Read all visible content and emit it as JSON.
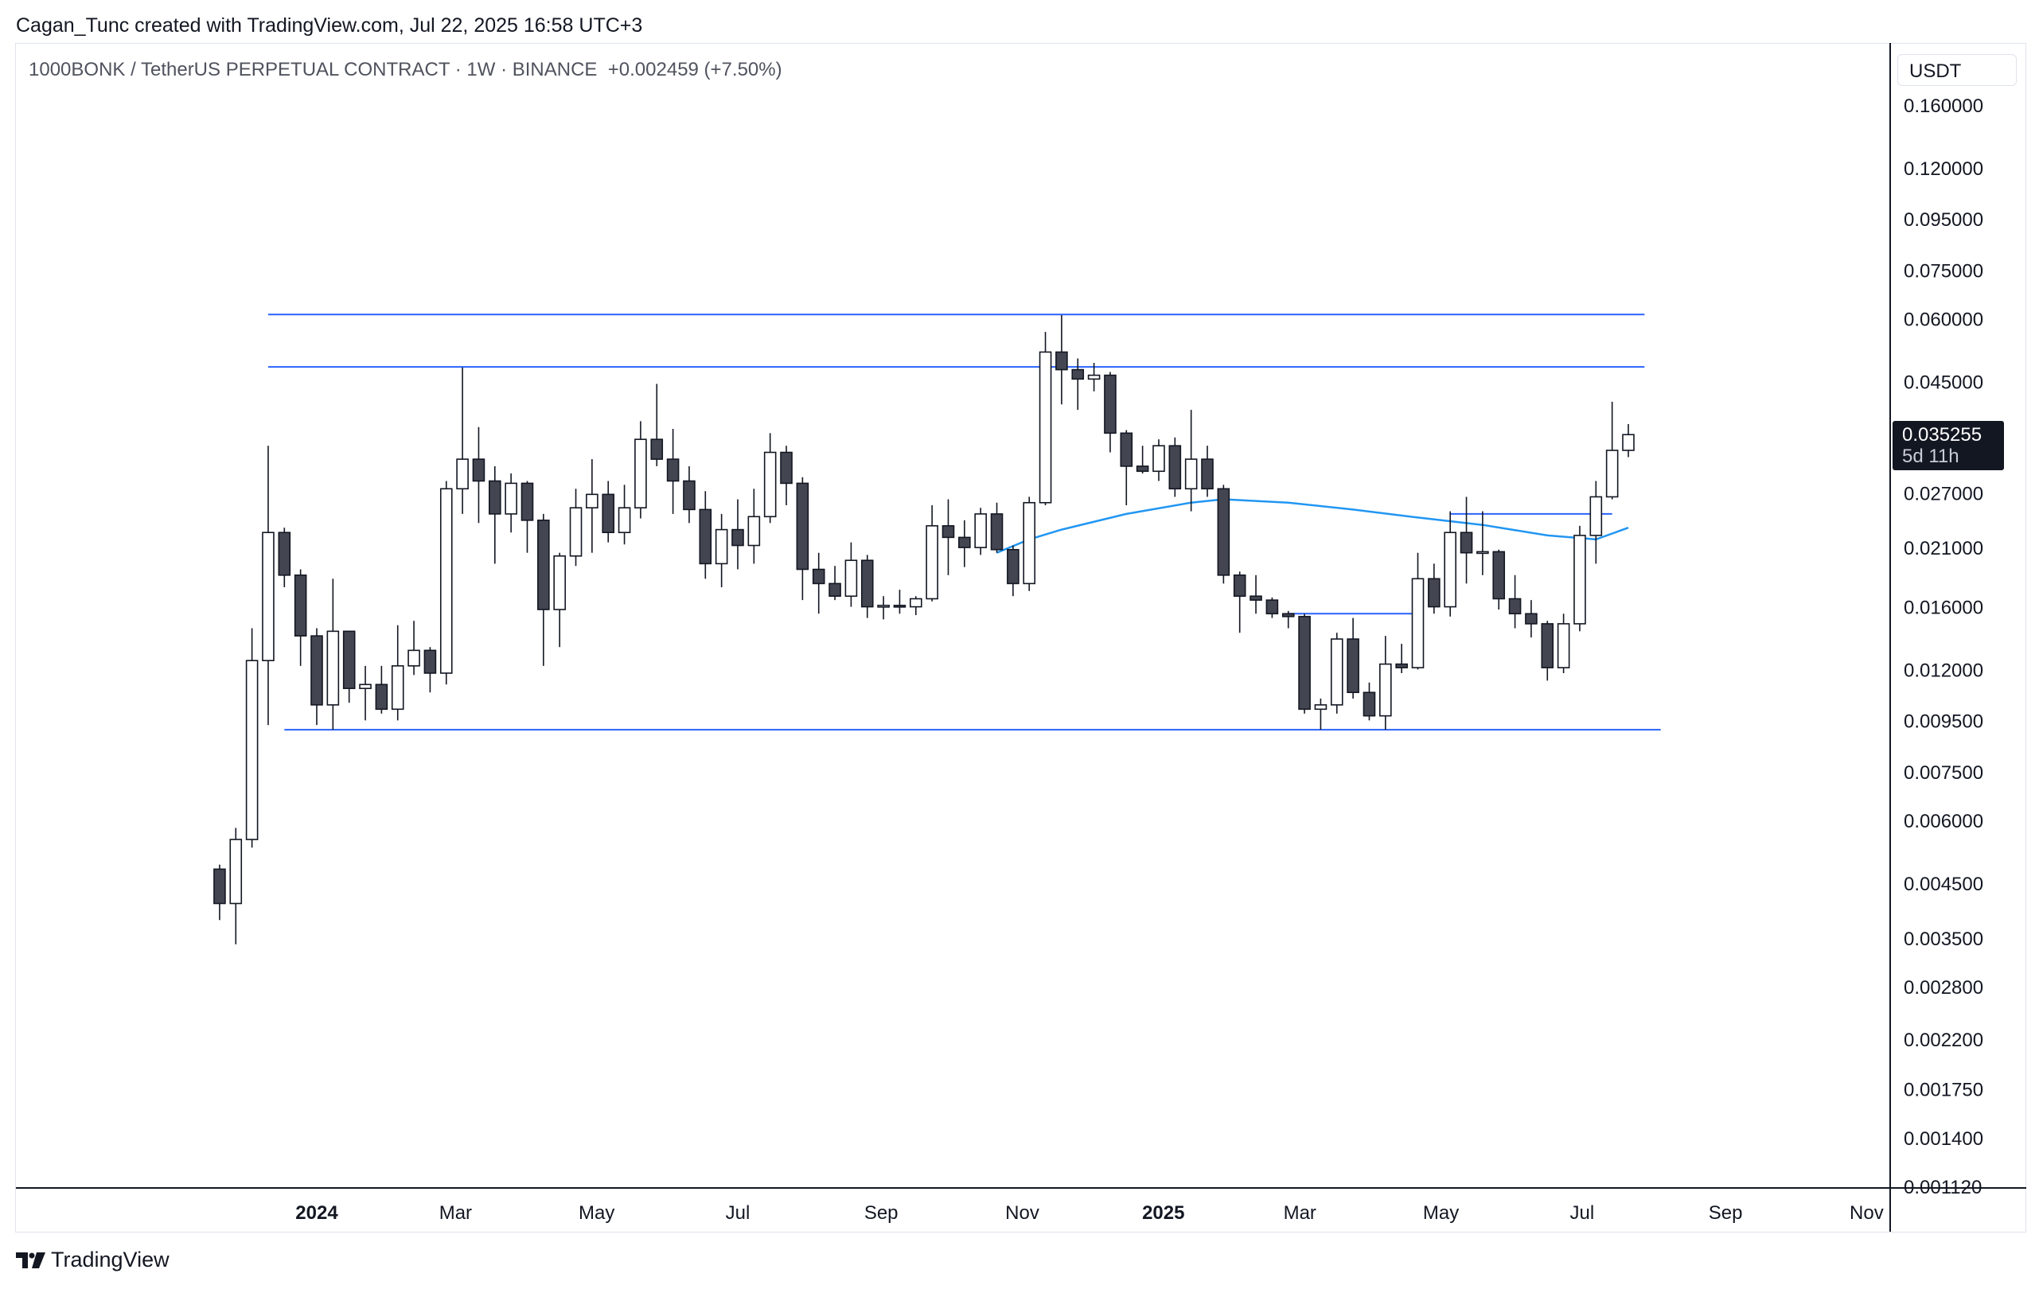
{
  "header": {
    "attribution": "Cagan_Tunc created with TradingView.com, Jul 22, 2025 16:58 UTC+3"
  },
  "legend": {
    "symbol": "1000BONK / TetherUS PERPETUAL CONTRACT · 1W · BINANCE",
    "change": "+0.002459 (+7.50%)"
  },
  "price_scale": {
    "currency": "USDT",
    "last_price": "0.035255",
    "countdown": "5d 11h"
  },
  "footer": {
    "brand": "TradingView"
  },
  "colors": {
    "bull_body": "#ffffff",
    "bear_body": "#434651",
    "candle_outline": "#131722",
    "trendline": "#2962ff",
    "moving_average": "#2196f3",
    "axis_line": "#131722"
  },
  "chart_data": {
    "type": "candlestick",
    "interval": "1W",
    "y_scale": "log",
    "y_ticks": [
      0.16,
      0.12,
      0.095,
      0.075,
      0.06,
      0.045,
      0.027,
      0.021,
      0.016,
      0.012,
      0.0095,
      0.0075,
      0.006,
      0.0045,
      0.0035,
      0.0028,
      0.0022,
      0.00175,
      0.0014,
      0.00112
    ],
    "y_tick_labels": [
      "0.160000",
      "0.120000",
      "0.095000",
      "0.075000",
      "0.060000",
      "0.045000",
      "0.027000",
      "0.021000",
      "0.016000",
      "0.012000",
      "0.009500",
      "0.007500",
      "0.006000",
      "0.004500",
      "0.003500",
      "0.002800",
      "0.002200",
      "0.001750",
      "0.001400",
      "0.001120"
    ],
    "x_ticks": [
      {
        "label": "2024",
        "date": "2024-01-01",
        "bold": true
      },
      {
        "label": "Mar",
        "date": "2024-03-01"
      },
      {
        "label": "May",
        "date": "2024-05-01"
      },
      {
        "label": "Jul",
        "date": "2024-07-01"
      },
      {
        "label": "Sep",
        "date": "2024-09-01"
      },
      {
        "label": "Nov",
        "date": "2024-11-01"
      },
      {
        "label": "2025",
        "date": "2025-01-01",
        "bold": true
      },
      {
        "label": "Mar",
        "date": "2025-03-01"
      },
      {
        "label": "May",
        "date": "2025-05-01"
      },
      {
        "label": "Jul",
        "date": "2025-07-01"
      },
      {
        "label": "Sep",
        "date": "2025-09-01"
      },
      {
        "label": "Nov",
        "date": "2025-11-01"
      }
    ],
    "candles": [
      {
        "date": "2023-11-20",
        "o": 0.0048,
        "h": 0.0049,
        "l": 0.0038,
        "c": 0.0041
      },
      {
        "date": "2023-11-27",
        "o": 0.0041,
        "h": 0.0058,
        "l": 0.0034,
        "c": 0.0055
      },
      {
        "date": "2023-12-04",
        "o": 0.0055,
        "h": 0.0145,
        "l": 0.0053,
        "c": 0.0125
      },
      {
        "date": "2023-12-11",
        "o": 0.0125,
        "h": 0.0335,
        "l": 0.0093,
        "c": 0.0225
      },
      {
        "date": "2023-12-18",
        "o": 0.0225,
        "h": 0.023,
        "l": 0.0175,
        "c": 0.0185
      },
      {
        "date": "2023-12-25",
        "o": 0.0185,
        "h": 0.019,
        "l": 0.0122,
        "c": 0.014
      },
      {
        "date": "2024-01-01",
        "o": 0.014,
        "h": 0.0145,
        "l": 0.0093,
        "c": 0.0102
      },
      {
        "date": "2024-01-08",
        "o": 0.0102,
        "h": 0.0182,
        "l": 0.0091,
        "c": 0.0143
      },
      {
        "date": "2024-01-15",
        "o": 0.0143,
        "h": 0.0143,
        "l": 0.0103,
        "c": 0.011
      },
      {
        "date": "2024-01-22",
        "o": 0.011,
        "h": 0.0122,
        "l": 0.0095,
        "c": 0.0112
      },
      {
        "date": "2024-01-29",
        "o": 0.0112,
        "h": 0.0122,
        "l": 0.0098,
        "c": 0.01
      },
      {
        "date": "2024-02-05",
        "o": 0.01,
        "h": 0.0147,
        "l": 0.0095,
        "c": 0.0122
      },
      {
        "date": "2024-02-12",
        "o": 0.0122,
        "h": 0.015,
        "l": 0.0117,
        "c": 0.0131
      },
      {
        "date": "2024-02-19",
        "o": 0.0131,
        "h": 0.0133,
        "l": 0.0108,
        "c": 0.0118
      },
      {
        "date": "2024-02-26",
        "o": 0.0118,
        "h": 0.0285,
        "l": 0.0112,
        "c": 0.0275
      },
      {
        "date": "2024-03-04",
        "o": 0.0275,
        "h": 0.048,
        "l": 0.0245,
        "c": 0.0315
      },
      {
        "date": "2024-03-11",
        "o": 0.0315,
        "h": 0.0365,
        "l": 0.0235,
        "c": 0.0285
      },
      {
        "date": "2024-03-18",
        "o": 0.0285,
        "h": 0.0305,
        "l": 0.0195,
        "c": 0.0245
      },
      {
        "date": "2024-03-25",
        "o": 0.0245,
        "h": 0.0295,
        "l": 0.0225,
        "c": 0.0282
      },
      {
        "date": "2024-04-01",
        "o": 0.0282,
        "h": 0.0285,
        "l": 0.0205,
        "c": 0.0238
      },
      {
        "date": "2024-04-08",
        "o": 0.0238,
        "h": 0.0245,
        "l": 0.0122,
        "c": 0.0158
      },
      {
        "date": "2024-04-15",
        "o": 0.0158,
        "h": 0.0205,
        "l": 0.0133,
        "c": 0.0202
      },
      {
        "date": "2024-04-22",
        "o": 0.0202,
        "h": 0.0275,
        "l": 0.0193,
        "c": 0.0252
      },
      {
        "date": "2024-04-29",
        "o": 0.0252,
        "h": 0.0315,
        "l": 0.0205,
        "c": 0.0268
      },
      {
        "date": "2024-05-06",
        "o": 0.0268,
        "h": 0.0285,
        "l": 0.0215,
        "c": 0.0225
      },
      {
        "date": "2024-05-13",
        "o": 0.0225,
        "h": 0.028,
        "l": 0.0213,
        "c": 0.0252
      },
      {
        "date": "2024-05-20",
        "o": 0.0252,
        "h": 0.0375,
        "l": 0.024,
        "c": 0.0345
      },
      {
        "date": "2024-05-27",
        "o": 0.0345,
        "h": 0.0445,
        "l": 0.0305,
        "c": 0.0315
      },
      {
        "date": "2024-06-03",
        "o": 0.0315,
        "h": 0.0362,
        "l": 0.0245,
        "c": 0.0285
      },
      {
        "date": "2024-06-10",
        "o": 0.0285,
        "h": 0.0305,
        "l": 0.0235,
        "c": 0.025
      },
      {
        "date": "2024-06-17",
        "o": 0.025,
        "h": 0.0272,
        "l": 0.0182,
        "c": 0.0195
      },
      {
        "date": "2024-06-24",
        "o": 0.0195,
        "h": 0.0245,
        "l": 0.0175,
        "c": 0.0228
      },
      {
        "date": "2024-07-01",
        "o": 0.0228,
        "h": 0.0262,
        "l": 0.019,
        "c": 0.0212
      },
      {
        "date": "2024-07-08",
        "o": 0.0212,
        "h": 0.0275,
        "l": 0.0195,
        "c": 0.0242
      },
      {
        "date": "2024-07-15",
        "o": 0.0242,
        "h": 0.0355,
        "l": 0.0235,
        "c": 0.0325
      },
      {
        "date": "2024-07-22",
        "o": 0.0325,
        "h": 0.0335,
        "l": 0.0255,
        "c": 0.0282
      },
      {
        "date": "2024-07-29",
        "o": 0.0282,
        "h": 0.029,
        "l": 0.0165,
        "c": 0.019
      },
      {
        "date": "2024-08-05",
        "o": 0.019,
        "h": 0.0205,
        "l": 0.0155,
        "c": 0.0178
      },
      {
        "date": "2024-08-12",
        "o": 0.0178,
        "h": 0.0193,
        "l": 0.0165,
        "c": 0.0168
      },
      {
        "date": "2024-08-19",
        "o": 0.0168,
        "h": 0.0215,
        "l": 0.016,
        "c": 0.0198
      },
      {
        "date": "2024-08-26",
        "o": 0.0198,
        "h": 0.0203,
        "l": 0.0152,
        "c": 0.016
      },
      {
        "date": "2024-09-02",
        "o": 0.016,
        "h": 0.0168,
        "l": 0.0151,
        "c": 0.0161
      },
      {
        "date": "2024-09-09",
        "o": 0.0161,
        "h": 0.0173,
        "l": 0.0155,
        "c": 0.016
      },
      {
        "date": "2024-09-16",
        "o": 0.016,
        "h": 0.0168,
        "l": 0.0154,
        "c": 0.0166
      },
      {
        "date": "2024-09-23",
        "o": 0.0166,
        "h": 0.0255,
        "l": 0.0164,
        "c": 0.0232
      },
      {
        "date": "2024-09-30",
        "o": 0.0232,
        "h": 0.0262,
        "l": 0.0185,
        "c": 0.022
      },
      {
        "date": "2024-10-07",
        "o": 0.022,
        "h": 0.0238,
        "l": 0.0192,
        "c": 0.021
      },
      {
        "date": "2024-10-14",
        "o": 0.021,
        "h": 0.0252,
        "l": 0.0203,
        "c": 0.0245
      },
      {
        "date": "2024-10-21",
        "o": 0.0245,
        "h": 0.0258,
        "l": 0.0205,
        "c": 0.0208
      },
      {
        "date": "2024-10-28",
        "o": 0.0208,
        "h": 0.0212,
        "l": 0.0168,
        "c": 0.0178
      },
      {
        "date": "2024-11-04",
        "o": 0.0178,
        "h": 0.0265,
        "l": 0.0172,
        "c": 0.0258
      },
      {
        "date": "2024-11-11",
        "o": 0.0258,
        "h": 0.0565,
        "l": 0.0255,
        "c": 0.0515
      },
      {
        "date": "2024-11-18",
        "o": 0.0515,
        "h": 0.061,
        "l": 0.0405,
        "c": 0.0475
      },
      {
        "date": "2024-11-25",
        "o": 0.0475,
        "h": 0.05,
        "l": 0.0395,
        "c": 0.0455
      },
      {
        "date": "2024-12-02",
        "o": 0.0455,
        "h": 0.049,
        "l": 0.043,
        "c": 0.0463
      },
      {
        "date": "2024-12-09",
        "o": 0.0463,
        "h": 0.047,
        "l": 0.0325,
        "c": 0.0355
      },
      {
        "date": "2024-12-16",
        "o": 0.0355,
        "h": 0.036,
        "l": 0.0255,
        "c": 0.0305
      },
      {
        "date": "2024-12-23",
        "o": 0.0305,
        "h": 0.0335,
        "l": 0.0295,
        "c": 0.0298
      },
      {
        "date": "2024-12-30",
        "o": 0.0298,
        "h": 0.0345,
        "l": 0.0285,
        "c": 0.0335
      },
      {
        "date": "2025-01-06",
        "o": 0.0335,
        "h": 0.0348,
        "l": 0.0265,
        "c": 0.0275
      },
      {
        "date": "2025-01-13",
        "o": 0.0275,
        "h": 0.0395,
        "l": 0.0248,
        "c": 0.0315
      },
      {
        "date": "2025-01-20",
        "o": 0.0315,
        "h": 0.0335,
        "l": 0.0265,
        "c": 0.0275
      },
      {
        "date": "2025-01-27",
        "o": 0.0275,
        "h": 0.028,
        "l": 0.0178,
        "c": 0.0185
      },
      {
        "date": "2025-02-03",
        "o": 0.0185,
        "h": 0.0188,
        "l": 0.0142,
        "c": 0.0168
      },
      {
        "date": "2025-02-10",
        "o": 0.0168,
        "h": 0.0185,
        "l": 0.0155,
        "c": 0.0165
      },
      {
        "date": "2025-02-17",
        "o": 0.0165,
        "h": 0.0167,
        "l": 0.0152,
        "c": 0.0155
      },
      {
        "date": "2025-02-24",
        "o": 0.0155,
        "h": 0.0157,
        "l": 0.0145,
        "c": 0.0153
      },
      {
        "date": "2025-03-03",
        "o": 0.0153,
        "h": 0.0155,
        "l": 0.0098,
        "c": 0.01
      },
      {
        "date": "2025-03-10",
        "o": 0.01,
        "h": 0.0105,
        "l": 0.0091,
        "c": 0.0102
      },
      {
        "date": "2025-03-17",
        "o": 0.0102,
        "h": 0.0142,
        "l": 0.0098,
        "c": 0.0138
      },
      {
        "date": "2025-03-24",
        "o": 0.0138,
        "h": 0.0152,
        "l": 0.0105,
        "c": 0.0108
      },
      {
        "date": "2025-03-31",
        "o": 0.0108,
        "h": 0.0113,
        "l": 0.0095,
        "c": 0.0097
      },
      {
        "date": "2025-04-07",
        "o": 0.0097,
        "h": 0.014,
        "l": 0.0091,
        "c": 0.0123
      },
      {
        "date": "2025-04-14",
        "o": 0.0123,
        "h": 0.0135,
        "l": 0.0118,
        "c": 0.0121
      },
      {
        "date": "2025-04-21",
        "o": 0.0121,
        "h": 0.0205,
        "l": 0.012,
        "c": 0.0182
      },
      {
        "date": "2025-04-28",
        "o": 0.0182,
        "h": 0.0195,
        "l": 0.0155,
        "c": 0.016
      },
      {
        "date": "2025-05-05",
        "o": 0.016,
        "h": 0.0248,
        "l": 0.0153,
        "c": 0.0225
      },
      {
        "date": "2025-05-12",
        "o": 0.0225,
        "h": 0.0265,
        "l": 0.0178,
        "c": 0.0205
      },
      {
        "date": "2025-05-19",
        "o": 0.0205,
        "h": 0.0248,
        "l": 0.0185,
        "c": 0.0206
      },
      {
        "date": "2025-05-26",
        "o": 0.0206,
        "h": 0.0208,
        "l": 0.0158,
        "c": 0.0166
      },
      {
        "date": "2025-06-02",
        "o": 0.0166,
        "h": 0.0185,
        "l": 0.0145,
        "c": 0.0155
      },
      {
        "date": "2025-06-09",
        "o": 0.0155,
        "h": 0.0165,
        "l": 0.0139,
        "c": 0.0148
      },
      {
        "date": "2025-06-16",
        "o": 0.0148,
        "h": 0.015,
        "l": 0.0114,
        "c": 0.0121
      },
      {
        "date": "2025-06-23",
        "o": 0.0121,
        "h": 0.0155,
        "l": 0.0118,
        "c": 0.0148
      },
      {
        "date": "2025-06-30",
        "o": 0.0148,
        "h": 0.0232,
        "l": 0.0143,
        "c": 0.0222
      },
      {
        "date": "2025-07-07",
        "o": 0.0222,
        "h": 0.0285,
        "l": 0.0195,
        "c": 0.0265
      },
      {
        "date": "2025-07-14",
        "o": 0.0265,
        "h": 0.041,
        "l": 0.0262,
        "c": 0.0328
      },
      {
        "date": "2025-07-21",
        "o": 0.0328,
        "h": 0.037,
        "l": 0.0318,
        "c": 0.035255
      }
    ],
    "moving_average": [
      {
        "date": "2024-10-21",
        "v": 0.0205
      },
      {
        "date": "2024-11-04",
        "v": 0.0218
      },
      {
        "date": "2024-11-18",
        "v": 0.0228
      },
      {
        "date": "2024-12-16",
        "v": 0.0245
      },
      {
        "date": "2025-01-13",
        "v": 0.0258
      },
      {
        "date": "2025-01-27",
        "v": 0.0262
      },
      {
        "date": "2025-02-24",
        "v": 0.0258
      },
      {
        "date": "2025-03-24",
        "v": 0.025
      },
      {
        "date": "2025-04-21",
        "v": 0.0241
      },
      {
        "date": "2025-05-19",
        "v": 0.0233
      },
      {
        "date": "2025-06-16",
        "v": 0.0222
      },
      {
        "date": "2025-07-07",
        "v": 0.0218
      },
      {
        "date": "2025-07-21",
        "v": 0.023
      }
    ],
    "horizontal_lines": [
      {
        "price": 0.0612,
        "from": "2023-12-11",
        "to": "2025-07-28"
      },
      {
        "price": 0.0481,
        "from": "2023-12-11",
        "to": "2025-07-28"
      },
      {
        "price": 0.0091,
        "from": "2023-12-18",
        "to": "2025-08-04"
      },
      {
        "price": 0.0155,
        "from": "2025-02-24",
        "to": "2025-04-21"
      },
      {
        "price": 0.0245,
        "from": "2025-05-05",
        "to": "2025-07-14"
      }
    ]
  }
}
